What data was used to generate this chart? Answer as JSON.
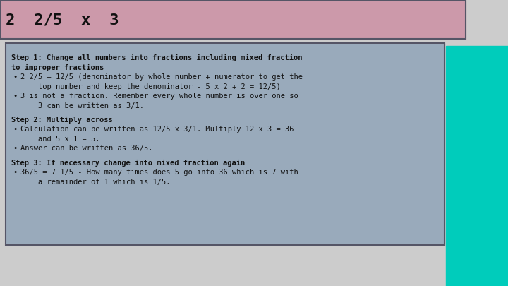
{
  "title": "2  2/5  x  3",
  "title_bg": "#cc99aa",
  "content_bg": "#99aabb",
  "teal_bg": "#00ccbb",
  "outer_bg": "#cccccc",
  "border_color": "#555566",
  "text_color": "#111111",
  "title_fontsize": 16,
  "body_fontsize": 7.5,
  "font_family": "monospace",
  "step1_header_line1": "Step 1: Change all numbers into fractions including mixed fraction",
  "step1_header_line2": "to improper fractions",
  "step1_b1_line1": "2 2/5 = 12/5 (denominator by whole number + numerator to get the",
  "step1_b1_line2": "    top number and keep the denominator - 5 x 2 + 2 = 12/5)",
  "step1_b2_line1": "3 is not a fraction. Remember every whole number is over one so",
  "step1_b2_line2": "    3 can be written as 3/1.",
  "step2_header": "Step 2: Multiply across",
  "step2_b1_line1": "Calculation can be written as 12/5 x 3/1. Multiply 12 x 3 = 36",
  "step2_b1_line2": "    and 5 x 1 = 5.",
  "step2_b2": "Answer can be written as 36/5.",
  "step3_header": "Step 3: If necessary change into mixed fraction again",
  "step3_b1_line1": "36/5 = 7 1/5 - How many times does 5 go into 36 which is 7 with",
  "step3_b1_line2": "    a remainder of 1 which is 1/5."
}
